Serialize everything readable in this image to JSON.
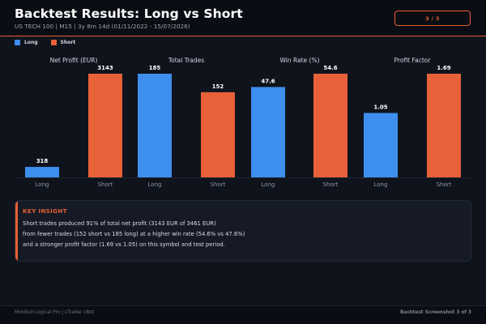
{
  "header": {
    "title": "Backtest Results: Long vs Short",
    "subtitle": "US TECH 100  |  M15  |  3y 8m 14d (01/11/2022 - 15/07/2026)",
    "page_indicator": "3 / 3"
  },
  "colors": {
    "long": "#3d8eed",
    "short": "#e96139",
    "accent": "#e85f34",
    "background": "#0f131c"
  },
  "legend": {
    "long_label": "Long",
    "short_label": "Short"
  },
  "chart_data": {
    "type": "bar",
    "categories": [
      "Long",
      "Short"
    ],
    "panels": [
      {
        "title": "Net Profit (EUR)",
        "values": [
          318,
          3143
        ],
        "labels": [
          "318",
          "3143"
        ],
        "ylim": [
          0,
          3143
        ]
      },
      {
        "title": "Total Trades",
        "values": [
          185,
          152
        ],
        "labels": [
          "185",
          "152"
        ],
        "ylim": [
          0,
          185
        ]
      },
      {
        "title": "Win Rate (%)",
        "values": [
          47.6,
          54.6
        ],
        "labels": [
          "47.6",
          "54.6"
        ],
        "ylim": [
          0,
          54.6
        ]
      },
      {
        "title": "Profit Factor",
        "values": [
          1.05,
          1.69
        ],
        "labels": [
          "1.05",
          "1.69"
        ],
        "ylim": [
          0,
          1.69
        ]
      }
    ],
    "series": [
      {
        "name": "Long",
        "color": "#3d8eed"
      },
      {
        "name": "Short",
        "color": "#e96139"
      }
    ],
    "legend_position": "top-left",
    "grid": false
  },
  "insight": {
    "heading": "KEY INSIGHT",
    "line1": "Short trades produced 91% of total net profit (3143 EUR of 3461 EUR)",
    "line2": "from fewer trades (152 short vs 185 long) at a higher win rate (54.6% vs 47.6%)",
    "line3": "and a stronger profit factor (1.69 vs 1.05) on this symbol and test period."
  },
  "footer": {
    "left": "MimBull Logical Pro  |  cTrader cBot",
    "right": "Backtest Screenshot 3 of 3"
  }
}
